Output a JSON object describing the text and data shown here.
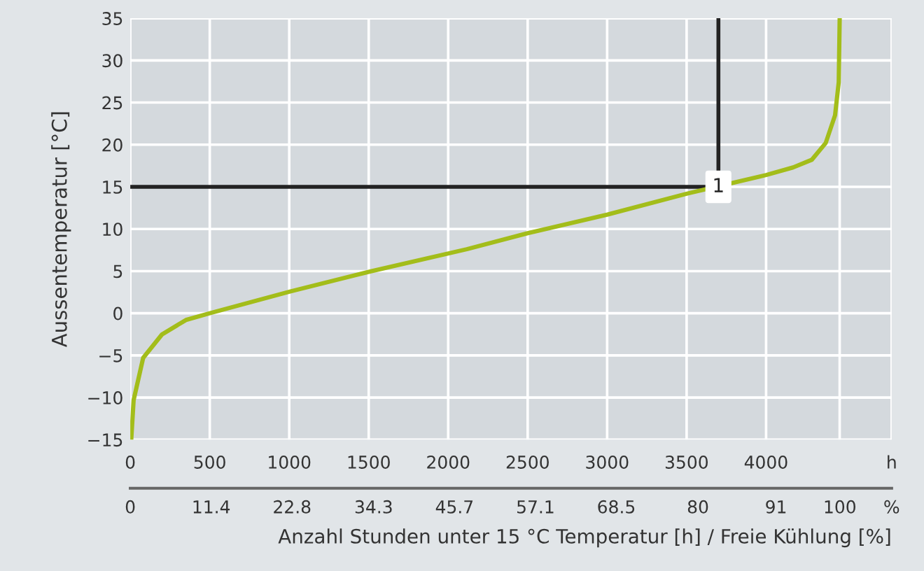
{
  "chart_data": {
    "type": "line",
    "xlabel": "Anzahl Stunden unter 15 °C Temperatur [h] / Freie Kühlung [%]",
    "ylabel": "Aussentemperatur [°C]",
    "series": [
      {
        "color": "#a3bd1a",
        "x": [
          6,
          21,
          81,
          200,
          350,
          500,
          1009,
          1518,
          2117,
          2500,
          3000,
          3504,
          4000,
          4170,
          4287,
          4375,
          4434,
          4457,
          4463
        ],
        "values": [
          -15,
          -10.3,
          -5.3,
          -2.5,
          -0.8,
          0,
          2.6,
          5,
          7.6,
          9.5,
          11.7,
          14.2,
          16.4,
          17.3,
          18.2,
          20.2,
          23.5,
          27.4,
          35
        ]
      }
    ],
    "xlim": [
      0,
      4790
    ],
    "xticks": [
      0,
      500,
      1000,
      1500,
      2000,
      2500,
      3000,
      3500,
      4000,
      {
        "value": 4463,
        "label": null
      },
      {
        "value": 4790,
        "label": "h"
      }
    ],
    "x2lim": [
      0,
      107.3
    ],
    "x2ticks": [
      0,
      11.4,
      22.8,
      34.3,
      45.7,
      57.1,
      68.5,
      80,
      91,
      100,
      {
        "value": 107.3,
        "label": "%"
      }
    ],
    "ylim": [
      -15,
      35
    ],
    "yticks": [
      {
        "value": -15,
        "label": "−15"
      },
      {
        "value": -10,
        "label": "−10"
      },
      {
        "value": -5,
        "label": "−5"
      },
      0,
      5,
      10,
      15,
      20,
      25,
      30,
      35
    ],
    "grid": true,
    "ref_lines": [
      {
        "axis": "x",
        "value": 3700,
        "color": "#222222"
      },
      {
        "axis": "y",
        "value": 15,
        "color": "#222222"
      }
    ],
    "annotations": [
      {
        "text": "1",
        "x": 3700,
        "y": 15
      }
    ]
  }
}
